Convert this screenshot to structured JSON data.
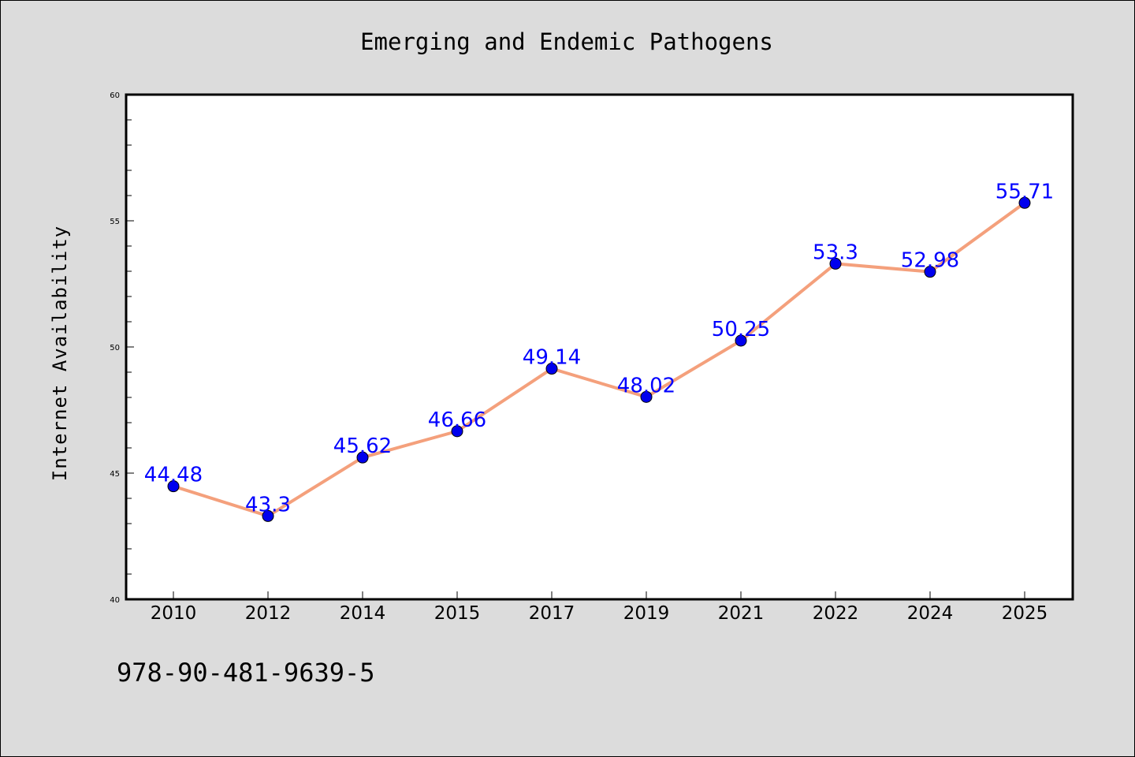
{
  "chart_data": {
    "type": "line",
    "title": "Emerging and Endemic Pathogens",
    "xlabel": "",
    "ylabel": "Internet Availability",
    "categories": [
      "2010",
      "2012",
      "2014",
      "2015",
      "2017",
      "2019",
      "2021",
      "2022",
      "2024",
      "2025"
    ],
    "series": [
      {
        "values": [
          44.48,
          43.3,
          45.62,
          46.66,
          49.14,
          48.02,
          50.25,
          53.3,
          52.98,
          55.71
        ]
      }
    ],
    "data_labels": [
      "44.48",
      "43.3",
      "45.62",
      "46.66",
      "49.14",
      "48.02",
      "50.25",
      "53.3",
      "52.98",
      "55.71"
    ],
    "ylim": [
      40,
      60
    ],
    "yticks": [
      "40",
      "45",
      "50",
      "55",
      "60"
    ],
    "grid": false,
    "legend": "none",
    "colors": {
      "line": "#f4a07c",
      "marker": "#0000ee",
      "label": "#0000ff",
      "plot_background": "#ffffff",
      "page_background": "#dcdcdc"
    }
  },
  "footer": {
    "code": "978-90-481-9639-5"
  }
}
